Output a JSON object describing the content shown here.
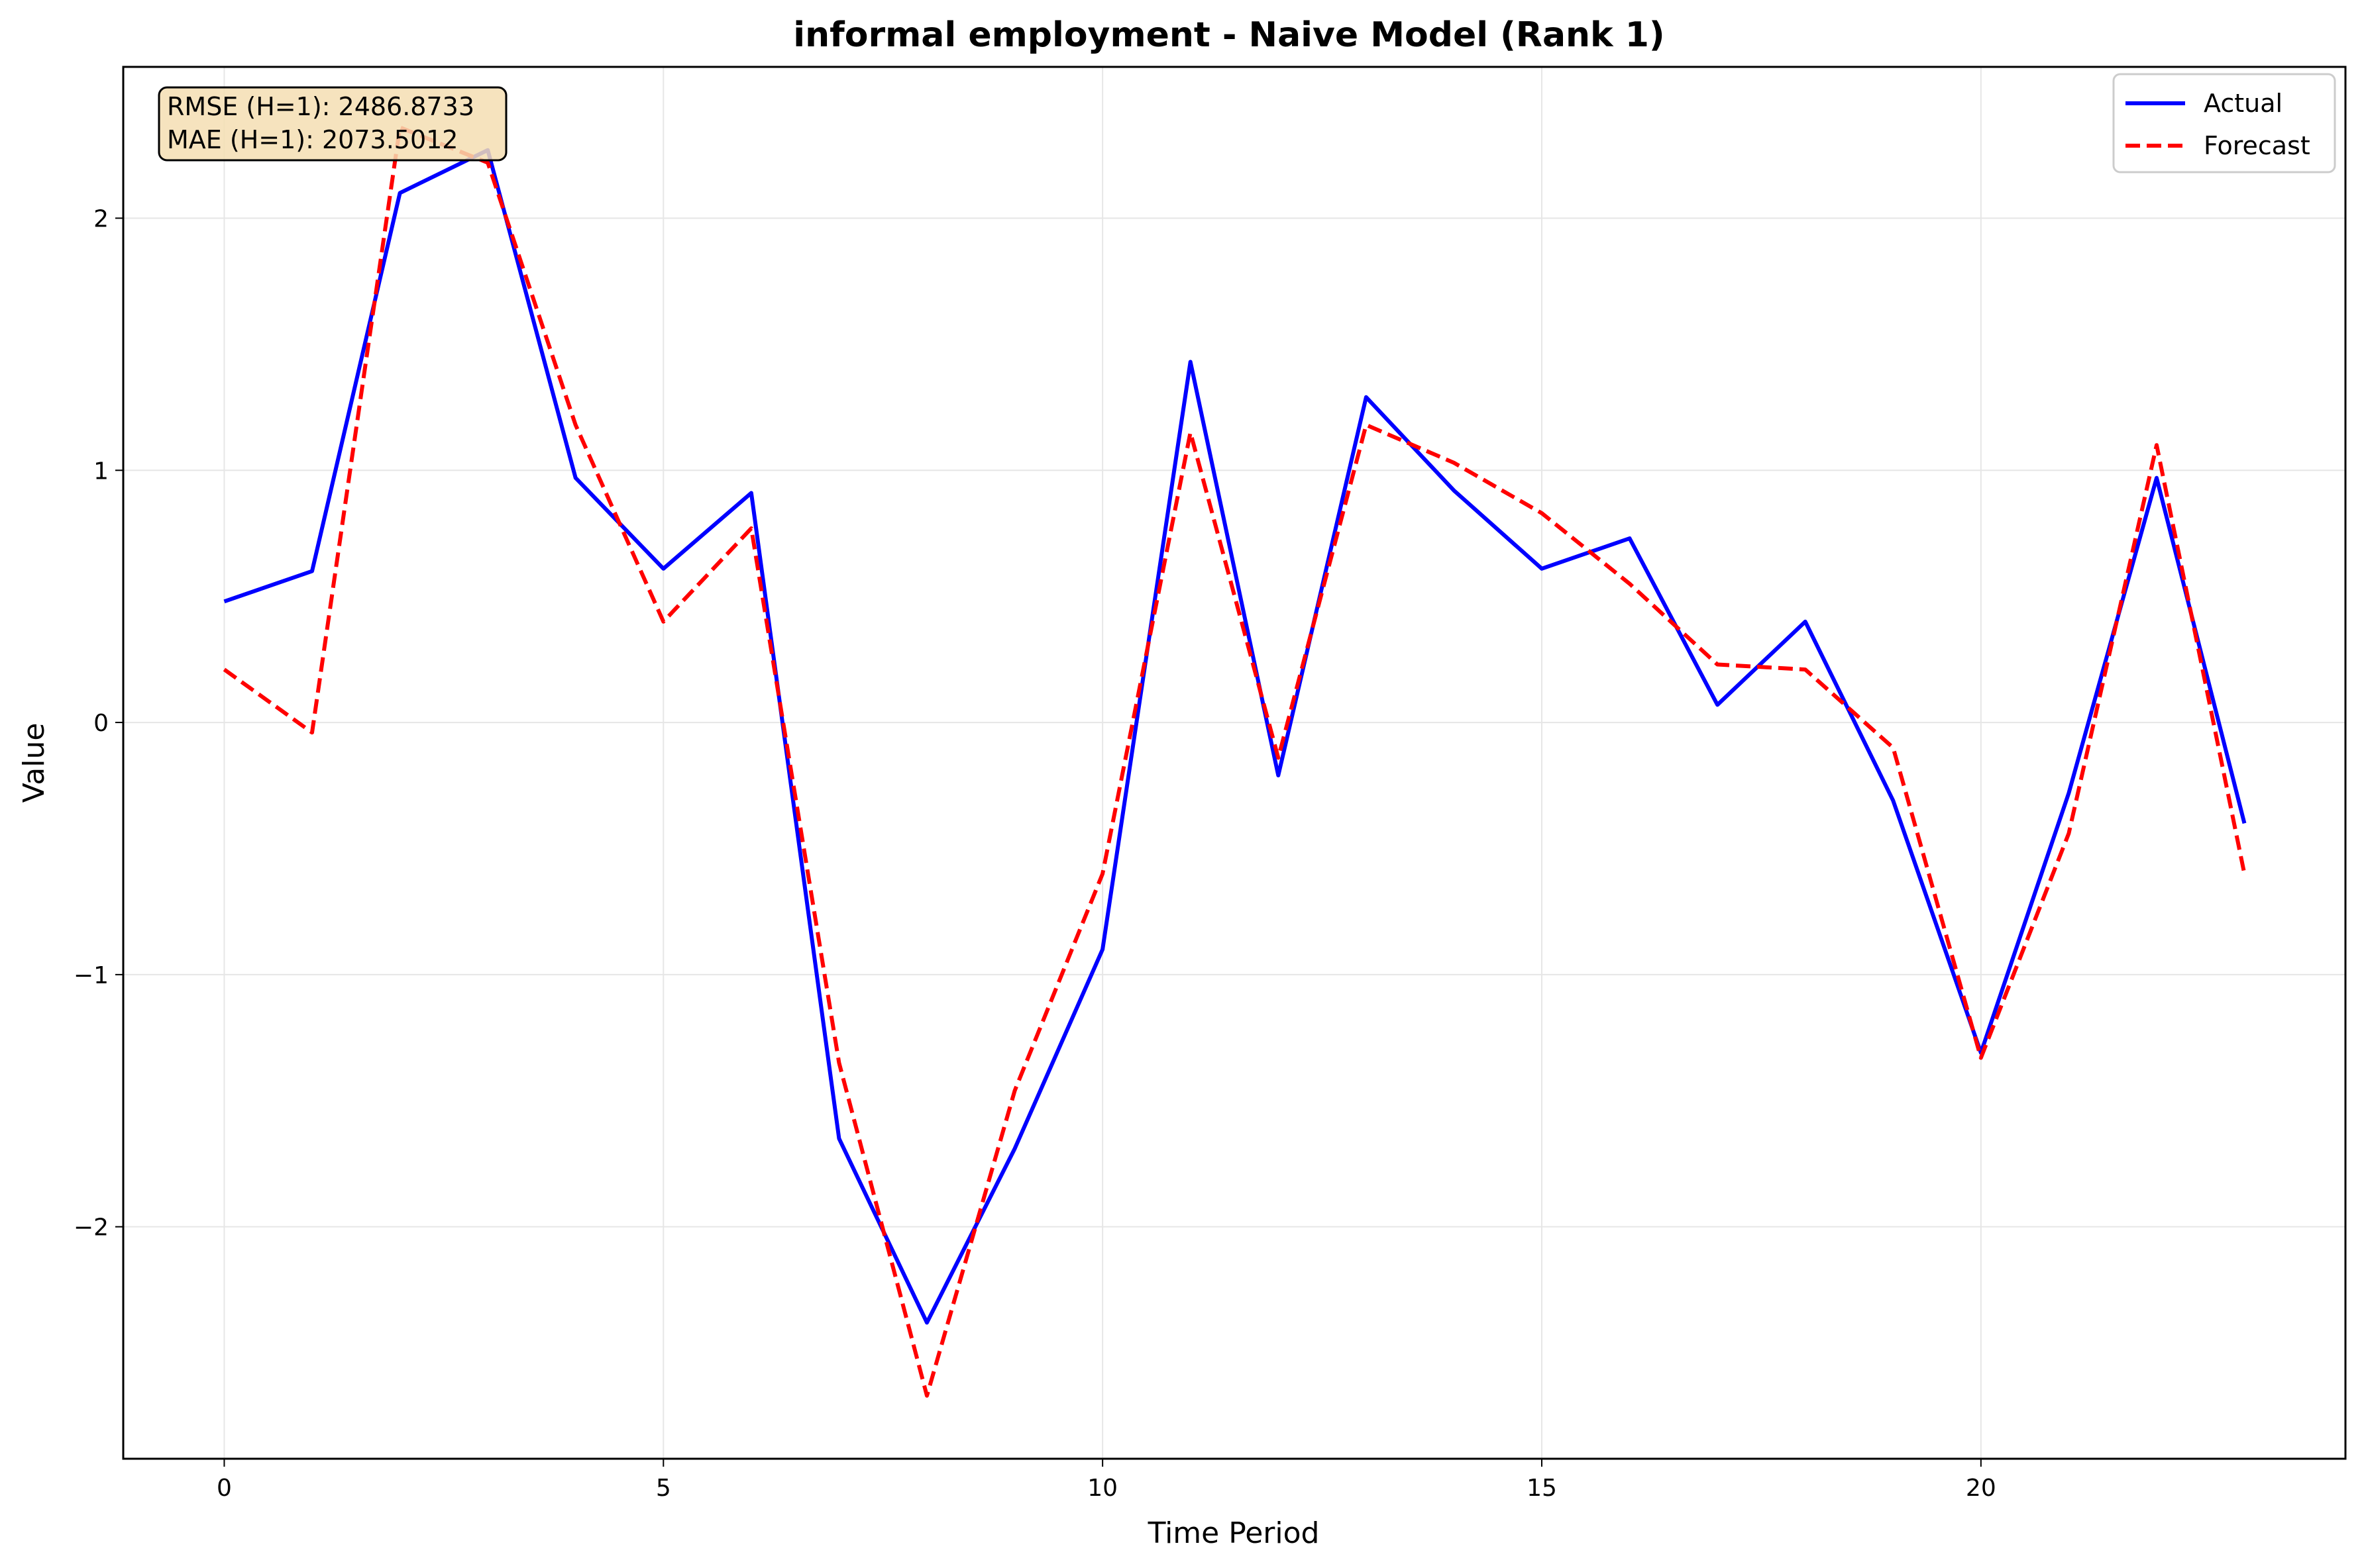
{
  "chart_data": {
    "type": "line",
    "title": "informal employment - Naive Model (Rank 1)",
    "xlabel": "Time Period",
    "ylabel": "Value",
    "xlim": [
      -1.15,
      24.15
    ],
    "ylim": [
      -2.92,
      2.6
    ],
    "xticks": [
      0,
      5,
      10,
      15,
      20
    ],
    "xtick_labels": [
      "0",
      "5",
      "10",
      "15",
      "20"
    ],
    "yticks": [
      -2,
      -1,
      0,
      1,
      2
    ],
    "ytick_labels": [
      "−2",
      "−1",
      "0",
      "1",
      "2"
    ],
    "grid": true,
    "legend_position": "top-right",
    "x": [
      0,
      1,
      2,
      3,
      4,
      5,
      6,
      7,
      8,
      9,
      10,
      11,
      12,
      13,
      14,
      15,
      16,
      17,
      18,
      19,
      20,
      21,
      22,
      23
    ],
    "series": [
      {
        "name": "Actual",
        "color": "#0000ff",
        "dash": "solid",
        "values": [
          0.48,
          0.6,
          2.1,
          2.27,
          0.97,
          0.61,
          0.91,
          -1.65,
          -2.38,
          -1.69,
          -0.9,
          1.43,
          -0.21,
          1.29,
          0.92,
          0.61,
          0.73,
          0.07,
          0.4,
          -0.31,
          -1.31,
          -0.28,
          0.97,
          -0.4
        ]
      },
      {
        "name": "Forecast",
        "color": "#ff0000",
        "dash": "dashed",
        "values": [
          0.21,
          -0.04,
          2.36,
          2.22,
          1.18,
          0.4,
          0.77,
          -1.35,
          -2.67,
          -1.46,
          -0.6,
          1.15,
          -0.14,
          1.18,
          1.03,
          0.83,
          0.55,
          0.23,
          0.21,
          -0.1,
          -1.33,
          -0.44,
          1.1,
          -0.6
        ]
      }
    ],
    "annotation": {
      "lines": [
        "RMSE (H=1): 2486.8733",
        "MAE (H=1): 2073.5012"
      ],
      "background": "#f5deb3"
    }
  }
}
